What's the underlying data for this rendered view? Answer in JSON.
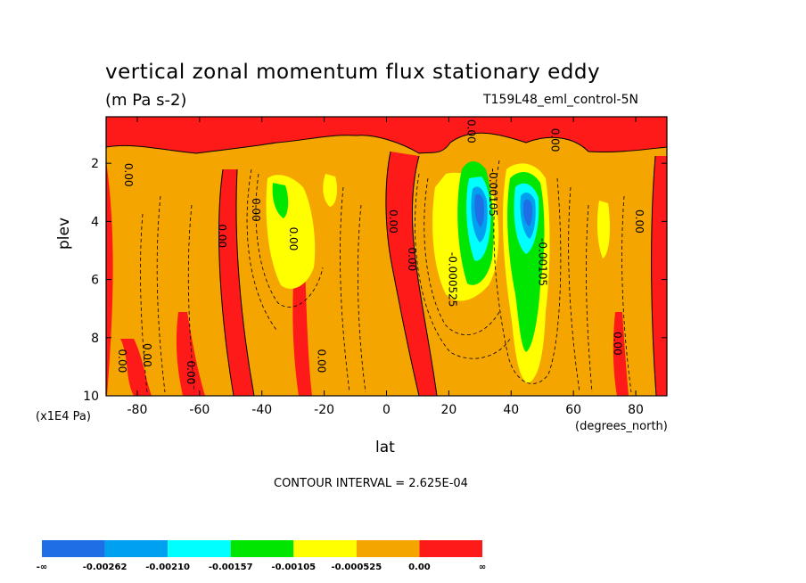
{
  "header": {
    "title": "vertical zonal momentum flux stationary eddy",
    "units": "(m Pa s-2)",
    "run_label": "T159L48_eml_control-5N"
  },
  "axes": {
    "ylabel": "plev",
    "y_unit": "(x1E4 Pa)",
    "xlabel": "lat",
    "x_unit": "(degrees_north)"
  },
  "footer": {
    "contour_interval": "CONTOUR INTERVAL = 2.625E-04"
  },
  "chart_data": {
    "type": "heatmap",
    "title": "vertical zonal momentum flux stationary eddy",
    "units": "(m Pa s-2)",
    "xlabel": "lat",
    "ylabel": "plev",
    "xlim": [
      -90,
      90
    ],
    "ylim": [
      10,
      0.4
    ],
    "x_ticks": [
      -80,
      -60,
      -40,
      -20,
      0,
      20,
      40,
      60,
      80
    ],
    "x_tick_labels": [
      "-80",
      "-60",
      "-40",
      "-20",
      "0",
      "20",
      "40",
      "60",
      "80"
    ],
    "y_ticks": [
      2,
      4,
      6,
      8,
      10
    ],
    "y_tick_labels": [
      "2",
      "4",
      "6",
      "8",
      "10"
    ],
    "contour_interval": 0.0002625,
    "colorbar": {
      "levels": [
        "-∞",
        "-0.00262",
        "-0.00210",
        "-0.00157",
        "-0.00105",
        "-0.000525",
        "0.00",
        "∞"
      ],
      "colors": [
        "#1e6ee6",
        "#00a0f0",
        "#00ffff",
        "#00e600",
        "#ffff00",
        "#f5a500",
        "#ff1a1a"
      ]
    },
    "contour_labels": [
      {
        "text": "0.00",
        "x": -84,
        "y": 2.4
      },
      {
        "text": "0.00",
        "x": -86,
        "y": 8.8
      },
      {
        "text": "0.00",
        "x": -78,
        "y": 8.6
      },
      {
        "text": "0.00",
        "x": -64,
        "y": 9.2
      },
      {
        "text": "0.00",
        "x": -54,
        "y": 4.5
      },
      {
        "text": "0.00",
        "x": -43,
        "y": 3.6
      },
      {
        "text": "0.00",
        "x": -31,
        "y": 4.6
      },
      {
        "text": "0.00",
        "x": -22,
        "y": 8.8
      },
      {
        "text": "0.00",
        "x": 1,
        "y": 4.0
      },
      {
        "text": "0.00",
        "x": 7,
        "y": 5.3
      },
      {
        "text": "-0.000525",
        "x": 20,
        "y": 6.0
      },
      {
        "text": "0.00",
        "x": 26,
        "y": 0.9
      },
      {
        "text": "-0.00105",
        "x": 33,
        "y": 3.0
      },
      {
        "text": "0.00",
        "x": 53,
        "y": 1.2
      },
      {
        "text": "-0.00105",
        "x": 49,
        "y": 5.4
      },
      {
        "text": "0.00",
        "x": 73,
        "y": 8.2
      },
      {
        "text": "0.00",
        "x": 80,
        "y": 4.0
      }
    ]
  }
}
